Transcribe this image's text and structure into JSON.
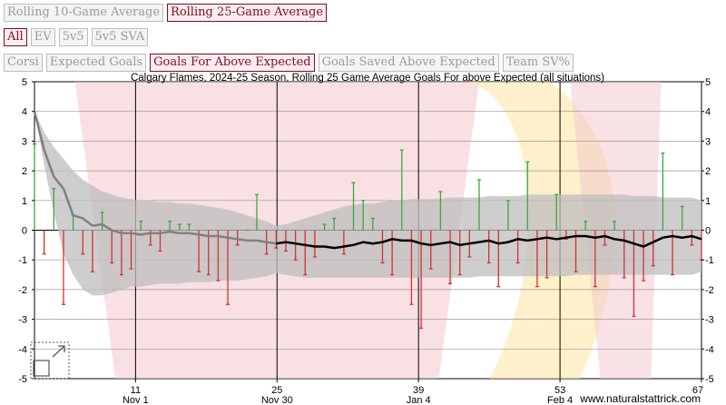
{
  "controls": {
    "rolling": [
      {
        "label": "Rolling 10-Game Average",
        "active": false
      },
      {
        "label": "Rolling 25-Game Average",
        "active": true
      }
    ],
    "situations": [
      {
        "label": "All",
        "active": true
      },
      {
        "label": "EV",
        "active": false
      },
      {
        "label": "5v5",
        "active": false
      },
      {
        "label": "5v5 SVA",
        "active": false
      }
    ],
    "metrics": [
      {
        "label": "Corsi",
        "active": false
      },
      {
        "label": "Expected Goals",
        "active": false
      },
      {
        "label": "Goals For Above Expected",
        "active": true
      },
      {
        "label": "Goals Saved Above Expected",
        "active": false
      },
      {
        "label": "Team SV%",
        "active": false
      }
    ]
  },
  "colors": {
    "positive_bar": "#3aa83a",
    "negative_bar": "#d63030",
    "rolling_line_early": "#808080",
    "rolling_line": "#000000",
    "band": "#bdbdbd",
    "watermark_red": "#f2c6cc",
    "watermark_gold": "#fbe6a8"
  },
  "chart_data": {
    "type": "bar",
    "title": "Calgary Flames, 2024-25 Season, Rolling 25 Game Average Goals For above Expected (all situations)",
    "xlim": [
      1,
      67
    ],
    "ylim": [
      -5,
      5
    ],
    "y_ticks": [
      5,
      4,
      3,
      2,
      1,
      0,
      -1,
      -2,
      -3,
      -4,
      -5
    ],
    "x_ticks": [
      11,
      25,
      39,
      53,
      67
    ],
    "date_labels": [
      {
        "game": 11,
        "label": "Nov 1"
      },
      {
        "game": 25,
        "label": "Nov 30"
      },
      {
        "game": 39,
        "label": "Jan 4"
      },
      {
        "game": 53,
        "label": "Feb 4"
      }
    ],
    "series": [
      {
        "values": [
          2.9,
          -0.8,
          1.4,
          -2.5,
          0.5,
          -0.8,
          -1.4,
          0.6,
          -1.1,
          -1.5,
          -1.3,
          0.3,
          -0.5,
          -0.7,
          0.3,
          0.2,
          0.2,
          -1.4,
          -1.5,
          -1.7,
          -2.5,
          -0.5,
          0.0,
          1.2,
          -0.8,
          -0.6,
          -0.7,
          -1.0,
          -1.5,
          -0.9,
          0.2,
          0.4,
          -0.8,
          1.6,
          1.0,
          0.4,
          -1.1,
          -1.5,
          2.7,
          -2.5,
          -3.3,
          -1.3,
          1.3,
          -1.8,
          -1.5,
          -0.9,
          1.7,
          -1.1,
          -1.9,
          1.0,
          -1.1,
          2.3,
          -1.9,
          -1.6,
          1.2,
          -0.3,
          -1.4,
          0.3,
          -1.9,
          -0.5,
          0.3,
          -1.6,
          -2.9,
          -1.7,
          -1.2,
          2.6,
          -1.5,
          0.8,
          -0.5,
          -1.0
        ]
      },
      {
        "values": [
          4.0,
          2.7,
          1.8,
          1.4,
          0.5,
          0.4,
          0.15,
          0.2,
          0.0,
          -0.1,
          -0.1,
          -0.15,
          -0.1,
          -0.1,
          -0.05,
          -0.1,
          -0.1,
          -0.15,
          -0.2,
          -0.2,
          -0.25,
          -0.3,
          -0.35,
          -0.35,
          -0.4,
          -0.45,
          -0.4,
          -0.45,
          -0.5,
          -0.55,
          -0.55,
          -0.6,
          -0.55,
          -0.5,
          -0.4,
          -0.45,
          -0.4,
          -0.3,
          -0.35,
          -0.35,
          -0.45,
          -0.5,
          -0.45,
          -0.4,
          -0.5,
          -0.45,
          -0.4,
          -0.35,
          -0.45,
          -0.4,
          -0.3,
          -0.35,
          -0.3,
          -0.25,
          -0.3,
          -0.25,
          -0.2,
          -0.2,
          -0.25,
          -0.2,
          -0.3,
          -0.35,
          -0.45,
          -0.55,
          -0.4,
          -0.25,
          -0.2,
          -0.25,
          -0.2,
          -0.3
        ]
      },
      {
        "values": [
          4.0,
          3.3,
          2.8,
          2.4,
          2.0,
          1.7,
          1.5,
          1.3,
          1.2,
          1.1,
          1.05,
          1.0,
          1.0,
          0.95,
          0.95,
          0.9,
          0.9,
          0.85,
          0.8,
          0.75,
          0.7,
          0.6,
          0.5,
          0.4,
          0.3,
          0.15,
          0.2,
          0.3,
          0.4,
          0.5,
          0.6,
          0.7,
          0.8,
          0.85,
          0.9,
          0.9,
          0.95,
          1.0,
          1.0,
          1.05,
          1.05,
          1.05,
          1.05,
          1.1,
          1.1,
          1.1,
          1.1,
          1.15,
          1.15,
          1.15,
          1.15,
          1.2,
          1.2,
          1.2,
          1.2,
          1.2,
          1.2,
          1.2,
          1.2,
          1.2,
          1.2,
          1.2,
          1.15,
          1.15,
          1.15,
          1.1,
          1.1,
          1.1,
          1.1,
          1.0
        ]
      },
      {
        "values": [
          4.0,
          2.2,
          0.6,
          -0.8,
          -1.5,
          -2.0,
          -2.2,
          -2.2,
          -2.1,
          -2.0,
          -1.9,
          -1.9,
          -1.85,
          -1.8,
          -1.8,
          -1.8,
          -1.75,
          -1.75,
          -1.75,
          -1.7,
          -1.7,
          -1.7,
          -1.65,
          -1.6,
          -1.55,
          -1.45,
          -1.5,
          -1.55,
          -1.6,
          -1.6,
          -1.6,
          -1.6,
          -1.6,
          -1.6,
          -1.6,
          -1.6,
          -1.6,
          -1.6,
          -1.6,
          -1.6,
          -1.6,
          -1.6,
          -1.6,
          -1.6,
          -1.6,
          -1.6,
          -1.55,
          -1.55,
          -1.55,
          -1.55,
          -1.55,
          -1.55,
          -1.55,
          -1.55,
          -1.55,
          -1.55,
          -1.5,
          -1.5,
          -1.5,
          -1.5,
          -1.5,
          -1.5,
          -1.5,
          -1.5,
          -1.5,
          -1.5,
          -1.5,
          -1.5,
          -1.5,
          -1.4
        ]
      }
    ],
    "rolling_starts_at_game": 25,
    "grid": true
  },
  "footer": {
    "credit": "www.naturalstattrick.com"
  }
}
